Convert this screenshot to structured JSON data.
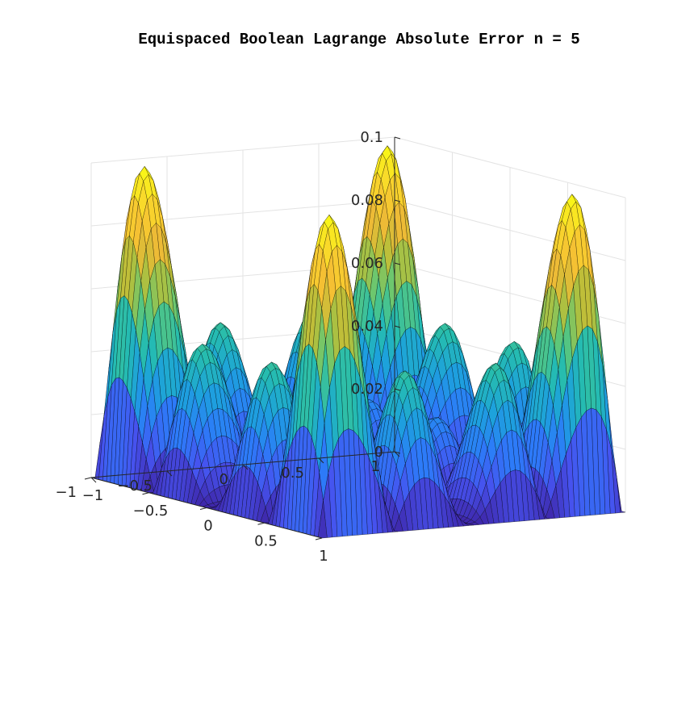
{
  "chart_data": {
    "type": "surface",
    "title": "Equispaced Boolean Lagrange Absolute Error n = 5",
    "xlabel": "",
    "ylabel": "",
    "zlabel": "",
    "xlim": [
      -1,
      1
    ],
    "ylim": [
      -1,
      1
    ],
    "zlim": [
      0,
      0.1
    ],
    "x_ticks": [
      -1,
      -0.5,
      0,
      0.5,
      1
    ],
    "x_tick_labels": [
      "−1",
      "−0.5",
      "0",
      "0.5",
      "1"
    ],
    "y_ticks": [
      -1,
      -0.5,
      0,
      0.5,
      1
    ],
    "y_tick_labels": [
      "−1",
      "−0.5",
      "0",
      "0.5",
      "1"
    ],
    "z_ticks": [
      0,
      0.02,
      0.04,
      0.06,
      0.08,
      0.1
    ],
    "z_tick_labels": [
      "0",
      "0.02",
      "0.04",
      "0.06",
      "0.08",
      "0.1"
    ],
    "grid": true,
    "colormap": "parula",
    "colormap_stops": [
      "#3e26a8",
      "#4653ef",
      "#2c7cf8",
      "#1da1dd",
      "#25bcb0",
      "#61c876",
      "#b7bf3a",
      "#f4ba35",
      "#f9d82b",
      "#f9fb15"
    ],
    "edge_color": "#000000",
    "surface_grid_points": 61,
    "interpolation_nodes": [
      -1,
      -0.5,
      0,
      0.5,
      1
    ],
    "approx_peak_error": 0.1,
    "view": "default 3-D view (azimuth -37.5, elevation 30)"
  }
}
